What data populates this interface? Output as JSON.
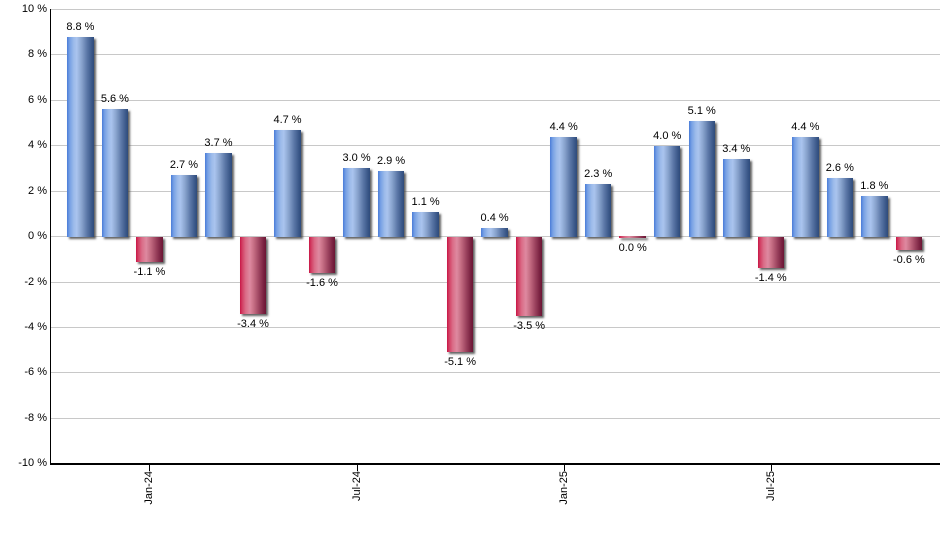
{
  "chart_data": {
    "type": "bar",
    "title": "",
    "ylabel": "",
    "xlabel": "",
    "ylim": [
      -10,
      10
    ],
    "grid": true,
    "y_ticks": [
      {
        "value": 10,
        "label": "10 %"
      },
      {
        "value": 8,
        "label": "8 %"
      },
      {
        "value": 6,
        "label": "6 %"
      },
      {
        "value": 4,
        "label": "4 %"
      },
      {
        "value": 2,
        "label": "2 %"
      },
      {
        "value": 0,
        "label": "0 %"
      },
      {
        "value": -2,
        "label": "-2 %"
      },
      {
        "value": -4,
        "label": "-4 %"
      },
      {
        "value": -6,
        "label": "-6 %"
      },
      {
        "value": -8,
        "label": "-8 %"
      },
      {
        "value": -10,
        "label": "-10 %"
      }
    ],
    "x_ticks": [
      {
        "bar_index": 2,
        "label": "Jan-24"
      },
      {
        "bar_index": 8,
        "label": "Jul-24"
      },
      {
        "bar_index": 14,
        "label": "Jan-25"
      },
      {
        "bar_index": 20,
        "label": "Jul-25"
      }
    ],
    "values": [
      8.8,
      5.6,
      -1.1,
      2.7,
      3.7,
      -3.4,
      4.7,
      -1.6,
      3.0,
      2.9,
      1.1,
      -5.1,
      0.4,
      -3.5,
      4.4,
      2.3,
      0.0,
      4.0,
      5.1,
      3.4,
      -1.4,
      4.4,
      2.6,
      1.8,
      -0.6
    ],
    "bar_labels": [
      "8.8 %",
      "5.6 %",
      "-1.1 %",
      "2.7 %",
      "3.7 %",
      "-3.4 %",
      "4.7 %",
      "-1.6 %",
      "3.0 %",
      "2.9 %",
      "1.1 %",
      "-5.1 %",
      "0.4 %",
      "-3.5 %",
      "4.4 %",
      "2.3 %",
      "0.0 %",
      "4.0 %",
      "5.1 %",
      "3.4 %",
      "-1.4 %",
      "4.4 %",
      "2.6 %",
      "1.8 %",
      "-0.6 %"
    ],
    "colors": {
      "positive_gradient": [
        {
          "pos": 0,
          "color": "#4a7cd8"
        },
        {
          "pos": 10,
          "color": "#76a0e4"
        },
        {
          "pos": 25,
          "color": "#9cbbea"
        },
        {
          "pos": 36,
          "color": "#aac4ee"
        },
        {
          "pos": 55,
          "color": "#87a2cc"
        },
        {
          "pos": 75,
          "color": "#5a76a6"
        },
        {
          "pos": 92,
          "color": "#3a5788"
        },
        {
          "pos": 100,
          "color": "#2e4b7b"
        }
      ],
      "negative_gradient": [
        {
          "pos": 0,
          "color": "#c81545"
        },
        {
          "pos": 8,
          "color": "#d23d62"
        },
        {
          "pos": 22,
          "color": "#da6d88"
        },
        {
          "pos": 38,
          "color": "#de89a0"
        },
        {
          "pos": 55,
          "color": "#c26a80"
        },
        {
          "pos": 75,
          "color": "#99405c"
        },
        {
          "pos": 92,
          "color": "#77203f"
        },
        {
          "pos": 100,
          "color": "#6c1534"
        }
      ],
      "gridline": "#c8c8c8",
      "axis": "#000000",
      "text": "#000000",
      "background": "#ffffff"
    },
    "legend": null
  }
}
